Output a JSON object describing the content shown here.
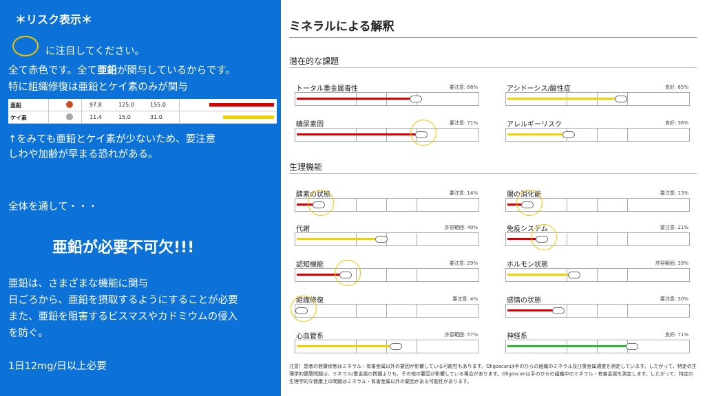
{
  "left": {
    "heading": "＊リスク表示＊",
    "ring_note": "に注目してください。",
    "line1_a": "全て赤色です。全て",
    "line1_b": "亜鉛",
    "line1_c": "が関与しているからです。",
    "line2": "特に組織修復は亜鉛とケイ素のみが関与",
    "mini_table": [
      {
        "name": "亜鉛",
        "v1": "97.8",
        "v2": "125.0",
        "v3": "155.0",
        "dot_color": "#c94d2a",
        "bar_color": "#d50000",
        "bar_value": 0.78
      },
      {
        "name": "ケイ素",
        "v1": "11.4",
        "v2": "15.0",
        "v3": "31.0",
        "dot_color": "#a8a8a8",
        "bar_color": "#f0d200",
        "bar_value": 0.62
      }
    ],
    "arrow_line1": "↑をみても亜鉛とケイ素が少ないため、要注意",
    "arrow_line2": "しわや加齢が早まる恐れがある。",
    "overall": "全体を通して・・・",
    "big": "亜鉛が必要不可欠!!!",
    "p1": "亜鉛は、さまざまな機能に関与",
    "p2": "日ごろから、亜鉛を摂取するようにすることが必要",
    "p3": "また、亜鉛を阻害するビスマスやカドミウムの侵入",
    "p4": "を防ぐ。",
    "dose": "1日12mg/日以上必要"
  },
  "right": {
    "title": "ミネラルによる解釈",
    "section1": "潜在的な課題",
    "section2": "生理機能",
    "items": [
      {
        "name": "トータル重金属毒性",
        "status": "要注意: 68%",
        "color": "#d50000",
        "value": 0.68,
        "circled": false
      },
      {
        "name": "アシドーシス/酸性症",
        "status": "良好: 65%",
        "color": "#f0d200",
        "value": 0.65,
        "circled": false
      },
      {
        "name": "糖尿素因",
        "status": "要注意: 71%",
        "color": "#d50000",
        "value": 0.71,
        "circled": true
      },
      {
        "name": "アレルギーリスク",
        "status": "良好: 36%",
        "color": "#f0d200",
        "value": 0.36,
        "circled": false
      },
      {
        "name": "酵素の状態",
        "status": "要注意: 14%",
        "color": "#d50000",
        "value": 0.14,
        "circled": true
      },
      {
        "name": "腸の消化能",
        "status": "要注意: 13%",
        "color": "#d50000",
        "value": 0.13,
        "circled": true
      },
      {
        "name": "代謝",
        "status": "許容範囲: 49%",
        "color": "#f0d200",
        "value": 0.49,
        "circled": false
      },
      {
        "name": "免疫システム",
        "status": "要注意: 21%",
        "color": "#d50000",
        "value": 0.21,
        "circled": true
      },
      {
        "name": "認知機能",
        "status": "要注意: 29%",
        "color": "#d50000",
        "value": 0.29,
        "circled": true
      },
      {
        "name": "ホルモン状態",
        "status": "許容範囲: 39%",
        "color": "#f0d200",
        "value": 0.39,
        "circled": false
      },
      {
        "name": "組織修復",
        "status": "要注意: 4%",
        "color": "#d50000",
        "value": 0.04,
        "circled": true
      },
      {
        "name": "感情の状態",
        "status": "要注意: 30%",
        "color": "#d50000",
        "value": 0.3,
        "circled": false
      },
      {
        "name": "心血管系",
        "status": "許容範囲: 57%",
        "color": "#f0d200",
        "value": 0.57,
        "circled": false
      },
      {
        "name": "神経系",
        "status": "良好: 71%",
        "color": "#2db82d",
        "value": 0.71,
        "circled": false
      }
    ],
    "note": "注意！患者の健康状態はミネラル・有害金属以外の要因が影響している可能性もあります。Oligoscanは手のひらの組織のミネラル及び重金属濃度を測定しています。したがって、特定の生理学的健康問題は、ミネラル/重金属の問題よりも、その他の要因が影響している場合があります。Oligoscanは手のひらの組織中のミネラル・有害金属を測定します。したがって、特定の生理学的な健康上の問題はミネラル・有害金属以外の要因がある可能性があります。"
  }
}
